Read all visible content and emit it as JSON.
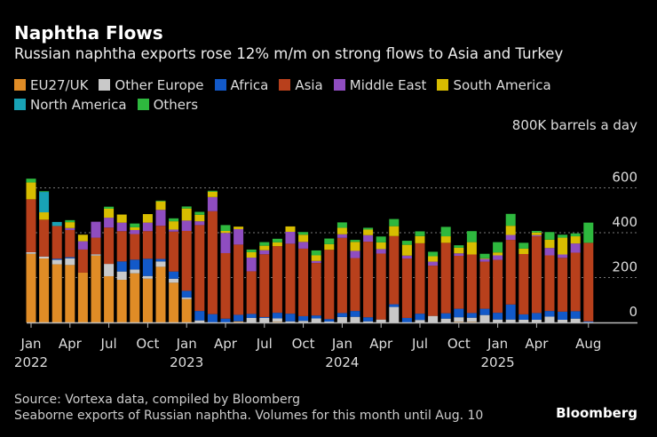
{
  "title": "Naphtha Flows",
  "subtitle": "Russian naphtha exports rose 12% m/m on strong flows to Asia and Turkey",
  "unit_label": "800K barrels a day",
  "source": "Source: Vortexa data, compiled by Bloomberg",
  "note": "Seaborne exports of Russian naphtha. Volumes for this month until Aug. 10",
  "logo": "Bloomberg",
  "chart_data": {
    "type": "bar",
    "stacked": true,
    "ylim": [
      0,
      800
    ],
    "yticks": [
      0,
      200,
      400,
      600
    ],
    "grid": true,
    "legend_placement": "top",
    "xtick_labels": [
      {
        "index": 0,
        "label": "Jan",
        "year": "2022"
      },
      {
        "index": 3,
        "label": "Apr"
      },
      {
        "index": 6,
        "label": "Jul"
      },
      {
        "index": 9,
        "label": "Oct"
      },
      {
        "index": 12,
        "label": "Jan",
        "year": "2023"
      },
      {
        "index": 15,
        "label": "Apr"
      },
      {
        "index": 18,
        "label": "Jul"
      },
      {
        "index": 21,
        "label": "Oct"
      },
      {
        "index": 24,
        "label": "Jan",
        "year": "2024"
      },
      {
        "index": 27,
        "label": "Apr"
      },
      {
        "index": 30,
        "label": "Jul"
      },
      {
        "index": 33,
        "label": "Oct"
      },
      {
        "index": 36,
        "label": "Jan",
        "year": "2025"
      },
      {
        "index": 39,
        "label": "Apr"
      },
      {
        "index": 43,
        "label": "Aug"
      }
    ],
    "categories": [
      "2022-01",
      "2022-02",
      "2022-03",
      "2022-04",
      "2022-05",
      "2022-06",
      "2022-07",
      "2022-08",
      "2022-09",
      "2022-10",
      "2022-11",
      "2022-12",
      "2023-01",
      "2023-02",
      "2023-03",
      "2023-04",
      "2023-05",
      "2023-06",
      "2023-07",
      "2023-08",
      "2023-09",
      "2023-10",
      "2023-11",
      "2023-12",
      "2024-01",
      "2024-02",
      "2024-03",
      "2024-04",
      "2024-05",
      "2024-06",
      "2024-07",
      "2024-08",
      "2024-09",
      "2024-10",
      "2024-11",
      "2024-12",
      "2025-01",
      "2025-02",
      "2025-03",
      "2025-04",
      "2025-05",
      "2025-06",
      "2025-07",
      "2025-08"
    ],
    "series": [
      {
        "name": "EU27/UK",
        "color": "#E08C26",
        "values": [
          306,
          285,
          259,
          256,
          222,
          298,
          206,
          190,
          219,
          195,
          248,
          177,
          104,
          0,
          0,
          0,
          5,
          0,
          0,
          3,
          0,
          0,
          0,
          0,
          0,
          0,
          0,
          0,
          0,
          0,
          0,
          0,
          0,
          3,
          3,
          0,
          0,
          0,
          0,
          0,
          0,
          0,
          0,
          0
        ]
      },
      {
        "name": "Other Europe",
        "color": "#C9C9C9",
        "values": [
          7,
          9,
          20,
          30,
          0,
          6,
          55,
          37,
          17,
          12,
          24,
          18,
          7,
          9,
          0,
          0,
          0,
          20,
          20,
          15,
          5,
          7,
          18,
          4,
          24,
          25,
          5,
          13,
          69,
          0,
          11,
          29,
          17,
          20,
          18,
          33,
          13,
          13,
          12,
          12,
          26,
          12,
          17,
          0
        ]
      },
      {
        "name": "Africa",
        "color": "#1259C9",
        "values": [
          0,
          0,
          5,
          5,
          0,
          0,
          0,
          45,
          44,
          77,
          11,
          32,
          30,
          42,
          37,
          17,
          29,
          18,
          4,
          25,
          34,
          21,
          13,
          11,
          18,
          26,
          18,
          0,
          12,
          20,
          28,
          0,
          24,
          38,
          21,
          28,
          30,
          67,
          24,
          30,
          25,
          36,
          33,
          5
        ]
      },
      {
        "name": "Asia",
        "color": "#B8401C",
        "values": [
          236,
          164,
          146,
          121,
          103,
          74,
          162,
          135,
          114,
          123,
          148,
          178,
          267,
          383,
          459,
          292,
          313,
          190,
          280,
          297,
          312,
          301,
          234,
          309,
          335,
          236,
          337,
          294,
          304,
          265,
          314,
          224,
          314,
          236,
          261,
          210,
          236,
          288,
          269,
          342,
          248,
          240,
          261,
          350
        ]
      },
      {
        "name": "Middle East",
        "color": "#8F4DC0",
        "values": [
          0,
          0,
          0,
          9,
          37,
          71,
          44,
          38,
          18,
          38,
          71,
          9,
          46,
          17,
          63,
          90,
          69,
          61,
          18,
          0,
          53,
          30,
          9,
          0,
          16,
          32,
          29,
          20,
          0,
          13,
          0,
          18,
          0,
          11,
          0,
          12,
          20,
          22,
          0,
          5,
          33,
          15,
          41,
          0
        ]
      },
      {
        "name": "South America",
        "color": "#D8BD00",
        "values": [
          75,
          33,
          0,
          26,
          29,
          0,
          40,
          36,
          12,
          38,
          38,
          37,
          54,
          29,
          24,
          9,
          11,
          24,
          20,
          17,
          24,
          32,
          25,
          25,
          29,
          40,
          25,
          30,
          44,
          48,
          32,
          24,
          29,
          25,
          55,
          3,
          13,
          41,
          24,
          12,
          37,
          75,
          32,
          0
        ]
      },
      {
        "name": "North America",
        "color": "#18A2B5",
        "values": [
          0,
          91,
          18,
          0,
          0,
          0,
          0,
          0,
          0,
          0,
          0,
          0,
          0,
          0,
          0,
          0,
          0,
          0,
          0,
          0,
          0,
          0,
          0,
          0,
          0,
          0,
          0,
          0,
          0,
          0,
          0,
          0,
          0,
          0,
          0,
          0,
          0,
          0,
          0,
          0,
          0,
          0,
          0,
          0
        ]
      },
      {
        "name": "Others",
        "color": "#2EB83E",
        "values": [
          17,
          3,
          0,
          9,
          0,
          0,
          9,
          0,
          17,
          0,
          3,
          13,
          9,
          13,
          4,
          26,
          0,
          12,
          16,
          16,
          0,
          12,
          22,
          25,
          24,
          9,
          8,
          26,
          32,
          18,
          21,
          20,
          42,
          11,
          49,
          20,
          46,
          53,
          26,
          7,
          34,
          13,
          13,
          90
        ]
      }
    ]
  }
}
